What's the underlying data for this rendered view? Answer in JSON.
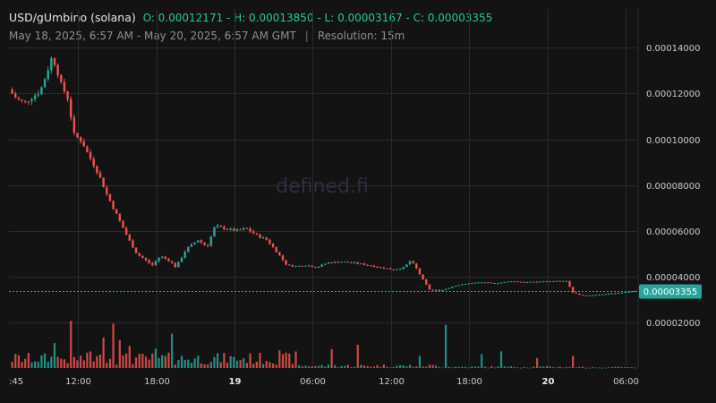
{
  "header": {
    "pair": "USD/gUmbino (solana)",
    "ohlc": "O: 0.00012171 - H: 0.00013850 - L: 0.00003167 - C: 0.00003355",
    "date_range": "May 18, 2025, 6:57 AM - May 20, 2025, 6:57 AM GMT",
    "separator": "|",
    "resolution": "Resolution: 15m"
  },
  "watermark": "defined.fi",
  "colors": {
    "up": "#26a69a",
    "down": "#ef5350",
    "background": "#131313",
    "grid": "#2a2a2a",
    "badge": "#26a69a"
  },
  "chart_data": {
    "type": "candlestick",
    "resolution": "15m",
    "ylim": [
      0,
      0.00015
    ],
    "y_ticks": [
      {
        "value": 2e-05,
        "label": "0.00002000"
      },
      {
        "value": 4e-05,
        "label": "0.00004000"
      },
      {
        "value": 6e-05,
        "label": "0.00006000"
      },
      {
        "value": 8e-05,
        "label": "0.00008000"
      },
      {
        "value": 0.0001,
        "label": "0.00010000"
      },
      {
        "value": 0.00012,
        "label": "0.00012000"
      },
      {
        "value": 0.00014,
        "label": "0.00014000"
      }
    ],
    "x_ticks": [
      {
        "label": ":45",
        "hours": -0.25,
        "bold": false
      },
      {
        "label": "12:00",
        "hours": 5.05,
        "bold": false
      },
      {
        "label": "18:00",
        "hours": 11.05,
        "bold": false
      },
      {
        "label": "19",
        "hours": 17.05,
        "bold": true
      },
      {
        "label": "06:00",
        "hours": 23.05,
        "bold": false
      },
      {
        "label": "12:00",
        "hours": 29.05,
        "bold": false
      },
      {
        "label": "18:00",
        "hours": 35.05,
        "bold": false
      },
      {
        "label": "20",
        "hours": 41.05,
        "bold": true
      },
      {
        "label": "06:00",
        "hours": 47.05,
        "bold": false
      }
    ],
    "x_range_hours": [
      -0.25,
      48
    ],
    "close_line": {
      "value": 3.355e-05,
      "label": "0.00003355"
    },
    "price_anchors": [
      [
        0,
        0.0001217
      ],
      [
        0.6,
        0.0001175
      ],
      [
        1.2,
        0.000116
      ],
      [
        1.8,
        0.0001185
      ],
      [
        2.4,
        0.000121
      ],
      [
        2.9,
        0.000129
      ],
      [
        3.3,
        0.000136
      ],
      [
        3.6,
        0.000132
      ],
      [
        4.0,
        0.000124
      ],
      [
        4.5,
        0.000118
      ],
      [
        5.0,
        0.000102
      ],
      [
        5.6,
        9.9e-05
      ],
      [
        6.1,
        9.3e-05
      ],
      [
        6.6,
        8.8e-05
      ],
      [
        7.0,
        8.3e-05
      ],
      [
        7.5,
        7.6e-05
      ],
      [
        8.0,
        7e-05
      ],
      [
        8.6,
        6.3e-05
      ],
      [
        9.2,
        5.6e-05
      ],
      [
        9.8,
        5e-05
      ],
      [
        10.5,
        4.7e-05
      ],
      [
        11.0,
        4.5e-05
      ],
      [
        11.6,
        4.9e-05
      ],
      [
        12.3,
        4.7e-05
      ],
      [
        12.8,
        4.4e-05
      ],
      [
        13.6,
        5.2e-05
      ],
      [
        14.5,
        5.6e-05
      ],
      [
        15.2,
        5.3e-05
      ],
      [
        15.8,
        6.2e-05
      ],
      [
        16.6,
        6.1e-05
      ],
      [
        17.4,
        6e-05
      ],
      [
        18.2,
        6.1e-05
      ],
      [
        19.0,
        5.8e-05
      ],
      [
        19.8,
        5.6e-05
      ],
      [
        20.5,
        5.1e-05
      ],
      [
        21.3,
        4.5e-05
      ],
      [
        22.0,
        4.45e-05
      ],
      [
        22.8,
        4.5e-05
      ],
      [
        23.6,
        4.4e-05
      ],
      [
        24.4,
        4.6e-05
      ],
      [
        25.5,
        4.65e-05
      ],
      [
        26.5,
        4.6e-05
      ],
      [
        27.5,
        4.5e-05
      ],
      [
        28.5,
        4.4e-05
      ],
      [
        29.5,
        4.3e-05
      ],
      [
        30.3,
        4.4e-05
      ],
      [
        30.8,
        4.7e-05
      ],
      [
        31.2,
        4.4e-05
      ],
      [
        31.8,
        3.8e-05
      ],
      [
        32.3,
        3.4e-05
      ],
      [
        33.2,
        3.4e-05
      ],
      [
        34.2,
        3.6e-05
      ],
      [
        35.2,
        3.7e-05
      ],
      [
        36.2,
        3.75e-05
      ],
      [
        37.3,
        3.7e-05
      ],
      [
        38.5,
        3.8e-05
      ],
      [
        39.6,
        3.75e-05
      ],
      [
        40.7,
        3.78e-05
      ],
      [
        41.8,
        3.8e-05
      ],
      [
        42.8,
        3.8e-05
      ],
      [
        43.2,
        3.3e-05
      ],
      [
        44.0,
        3.17e-05
      ],
      [
        45.0,
        3.2e-05
      ],
      [
        46.0,
        3.25e-05
      ],
      [
        47.0,
        3.3e-05
      ],
      [
        47.8,
        3.36e-05
      ]
    ],
    "volume_spikes": [
      [
        4.6,
        0.85,
        "down"
      ],
      [
        7.7,
        0.8,
        "down"
      ],
      [
        6.9,
        0.55,
        "down"
      ],
      [
        12.3,
        0.62,
        "up"
      ],
      [
        26.6,
        0.42,
        "down"
      ],
      [
        24.4,
        0.34,
        "down"
      ],
      [
        33.3,
        0.78,
        "up"
      ],
      [
        36.1,
        0.25,
        "up"
      ],
      [
        37.4,
        0.3,
        "up"
      ],
      [
        40.3,
        0.18,
        "down"
      ],
      [
        5.9,
        0.3,
        "down"
      ],
      [
        3.3,
        0.45,
        "up"
      ],
      [
        8.2,
        0.5,
        "down"
      ],
      [
        9.1,
        0.4,
        "down"
      ],
      [
        11.1,
        0.35,
        "up"
      ],
      [
        16.9,
        0.2,
        "up"
      ],
      [
        20.6,
        0.32,
        "down"
      ],
      [
        21.7,
        0.3,
        "down"
      ],
      [
        31.3,
        0.22,
        "up"
      ],
      [
        43.1,
        0.22,
        "down"
      ]
    ]
  }
}
